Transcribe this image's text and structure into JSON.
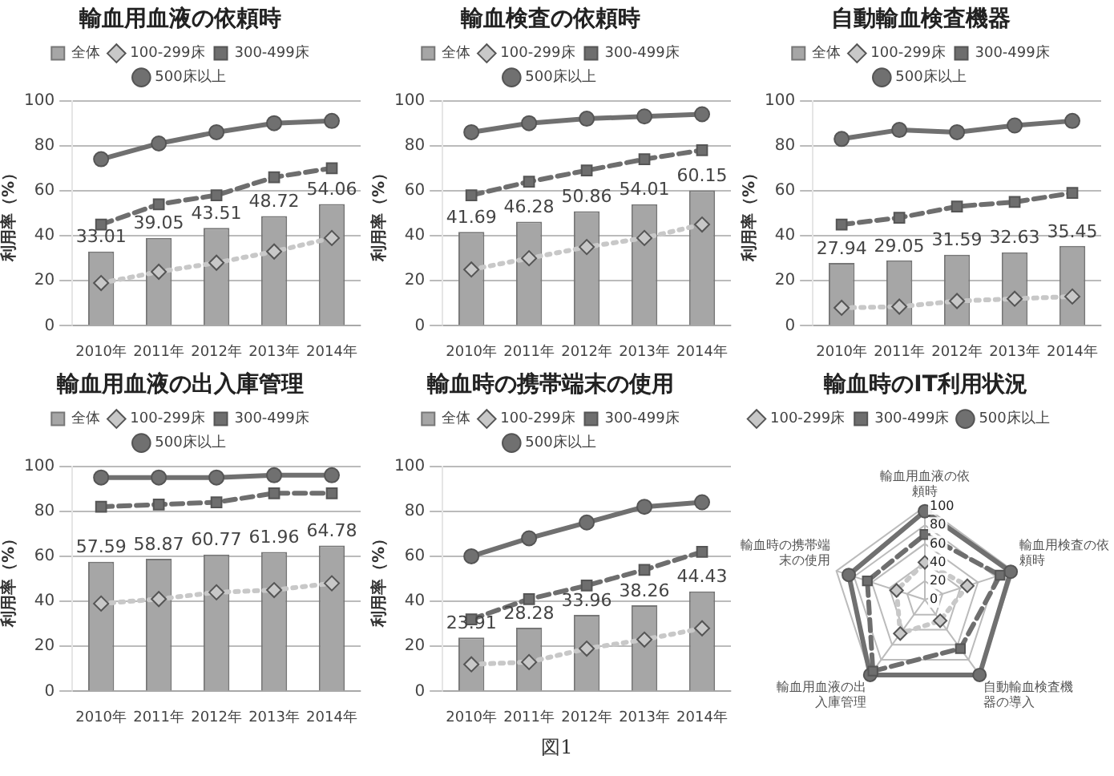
{
  "chart_data": [
    {
      "type": "bar",
      "title": "輸血用血液の依頼時",
      "ylabel": "利用率（%）",
      "categories": [
        "2010年",
        "2011年",
        "2012年",
        "2013年",
        "2014年"
      ],
      "ylim": [
        0,
        100
      ],
      "yticks": [
        0,
        20,
        40,
        60,
        80,
        100
      ],
      "grid": "y",
      "legend": "top",
      "series": [
        {
          "name": "全体",
          "type": "bar",
          "color": "#a6a6a6",
          "values": [
            33.01,
            39.05,
            43.51,
            48.72,
            54.06
          ],
          "value_labels": [
            "33.01",
            "39.05",
            "43.51",
            "48.72",
            "54.06"
          ]
        },
        {
          "name": "100-299床",
          "type": "line",
          "color": "#c8c8c8",
          "marker": "diamond",
          "line_style": "dotted",
          "values": [
            19,
            24,
            28,
            33,
            39
          ]
        },
        {
          "name": "300-499床",
          "type": "line",
          "color": "#6e6e6e",
          "marker": "square",
          "line_style": "dashed",
          "values": [
            45,
            54,
            58,
            66,
            70
          ]
        },
        {
          "name": "500床以上",
          "type": "line",
          "color": "#707070",
          "marker": "circle",
          "line_style": "solid",
          "values": [
            74,
            81,
            86,
            90,
            91
          ]
        }
      ]
    },
    {
      "type": "bar",
      "title": "輸血検査の依頼時",
      "ylabel": "利用率（%）",
      "categories": [
        "2010年",
        "2011年",
        "2012年",
        "2013年",
        "2014年"
      ],
      "ylim": [
        0,
        100
      ],
      "yticks": [
        0,
        20,
        40,
        60,
        80,
        100
      ],
      "grid": "y",
      "legend": "top",
      "series": [
        {
          "name": "全体",
          "type": "bar",
          "color": "#a6a6a6",
          "values": [
            41.69,
            46.28,
            50.86,
            54.01,
            60.15
          ],
          "value_labels": [
            "41.69",
            "46.28",
            "50.86",
            "54.01",
            "60.15"
          ]
        },
        {
          "name": "100-299床",
          "type": "line",
          "color": "#c8c8c8",
          "marker": "diamond",
          "line_style": "dotted",
          "values": [
            25,
            30,
            35,
            39,
            45
          ]
        },
        {
          "name": "300-499床",
          "type": "line",
          "color": "#6e6e6e",
          "marker": "square",
          "line_style": "dashed",
          "values": [
            58,
            64,
            69,
            74,
            78
          ]
        },
        {
          "name": "500床以上",
          "type": "line",
          "color": "#707070",
          "marker": "circle",
          "line_style": "solid",
          "values": [
            86,
            90,
            92,
            93,
            94
          ]
        }
      ]
    },
    {
      "type": "bar",
      "title": "自動輸血検査機器",
      "ylabel": "利用率（%）",
      "categories": [
        "2010年",
        "2011年",
        "2012年",
        "2013年",
        "2014年"
      ],
      "ylim": [
        0,
        100
      ],
      "yticks": [
        0,
        20,
        40,
        60,
        80,
        100
      ],
      "grid": "y",
      "legend": "top",
      "series": [
        {
          "name": "全体",
          "type": "bar",
          "color": "#a6a6a6",
          "values": [
            27.94,
            29.05,
            31.59,
            32.63,
            35.45
          ],
          "value_labels": [
            "27.94",
            "29.05",
            "31.59",
            "32.63",
            "35.45"
          ]
        },
        {
          "name": "100-299床",
          "type": "line",
          "color": "#c8c8c8",
          "marker": "diamond",
          "line_style": "dotted",
          "values": [
            8,
            8.5,
            11,
            12,
            13
          ]
        },
        {
          "name": "300-499床",
          "type": "line",
          "color": "#6e6e6e",
          "marker": "square",
          "line_style": "dashed",
          "values": [
            45,
            48,
            53,
            55,
            59
          ]
        },
        {
          "name": "500床以上",
          "type": "line",
          "color": "#707070",
          "marker": "circle",
          "line_style": "solid",
          "values": [
            83,
            87,
            86,
            89,
            91
          ]
        }
      ]
    },
    {
      "type": "bar",
      "title": "輸血用血液の出入庫管理",
      "ylabel": "利用率（%）",
      "categories": [
        "2010年",
        "2011年",
        "2012年",
        "2013年",
        "2014年"
      ],
      "ylim": [
        0,
        100
      ],
      "yticks": [
        0,
        20,
        40,
        60,
        80,
        100
      ],
      "grid": "y",
      "legend": "top",
      "series": [
        {
          "name": "全体",
          "type": "bar",
          "color": "#a6a6a6",
          "values": [
            57.59,
            58.87,
            60.77,
            61.96,
            64.78
          ],
          "value_labels": [
            "57.59",
            "58.87",
            "60.77",
            "61.96",
            "64.78"
          ]
        },
        {
          "name": "100-299床",
          "type": "line",
          "color": "#c8c8c8",
          "marker": "diamond",
          "line_style": "dotted",
          "values": [
            39,
            41,
            44,
            45,
            48
          ]
        },
        {
          "name": "300-499床",
          "type": "line",
          "color": "#6e6e6e",
          "marker": "square",
          "line_style": "dashed",
          "values": [
            82,
            83,
            84,
            88,
            88
          ]
        },
        {
          "name": "500床以上",
          "type": "line",
          "color": "#707070",
          "marker": "circle",
          "line_style": "solid",
          "values": [
            95,
            95,
            95,
            96,
            96
          ]
        }
      ]
    },
    {
      "type": "bar",
      "title": "輸血時の携帯端末の使用",
      "ylabel": "利用率（%）",
      "categories": [
        "2010年",
        "2011年",
        "2012年",
        "2013年",
        "2014年"
      ],
      "ylim": [
        0,
        100
      ],
      "yticks": [
        0,
        20,
        40,
        60,
        80,
        100
      ],
      "grid": "y",
      "legend": "top",
      "annotations": [
        "図1"
      ],
      "series": [
        {
          "name": "全体",
          "type": "bar",
          "color": "#a6a6a6",
          "values": [
            23.91,
            28.28,
            33.96,
            38.26,
            44.43
          ],
          "value_labels": [
            "23.91",
            "28.28",
            "33.96",
            "38.26",
            "44.43"
          ]
        },
        {
          "name": "100-299床",
          "type": "line",
          "color": "#c8c8c8",
          "marker": "diamond",
          "line_style": "dotted",
          "values": [
            12,
            13,
            19,
            23,
            28
          ]
        },
        {
          "name": "300-499床",
          "type": "line",
          "color": "#6e6e6e",
          "marker": "square",
          "line_style": "dashed",
          "values": [
            32,
            41,
            47,
            54,
            62
          ]
        },
        {
          "name": "500床以上",
          "type": "line",
          "color": "#707070",
          "marker": "circle",
          "line_style": "solid",
          "values": [
            60,
            68,
            75,
            82,
            84
          ]
        }
      ]
    },
    {
      "type": "radar",
      "title": "輸血時のIT利用状況",
      "categories": [
        "輸血用血液の依頼時",
        "輸血用検査の依頼時",
        "自動輸血検査機器の導入",
        "輸血用血液の出入庫管理",
        "輸血時の携帯端末の使用"
      ],
      "ylim": [
        0,
        100
      ],
      "yticks": [
        0,
        20,
        40,
        60,
        80,
        100
      ],
      "grid": true,
      "legend": "top left",
      "series": [
        {
          "name": "100-299床",
          "color": "#c8c8c8",
          "marker": "diamond",
          "line_style": "dotted",
          "values": [
            40,
            48,
            28,
            45,
            32
          ]
        },
        {
          "name": "300-499床",
          "color": "#6e6e6e",
          "marker": "square",
          "line_style": "dashed",
          "values": [
            70,
            85,
            65,
            95,
            65
          ]
        },
        {
          "name": "500床以上",
          "color": "#707070",
          "marker": "circle",
          "line_style": "solid",
          "values": [
            95,
            97,
            100,
            100,
            86
          ]
        }
      ]
    }
  ]
}
